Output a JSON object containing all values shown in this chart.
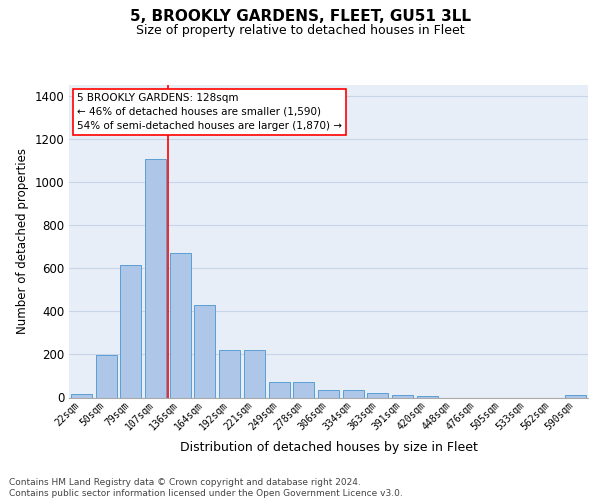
{
  "title": "5, BROOKLY GARDENS, FLEET, GU51 3LL",
  "subtitle": "Size of property relative to detached houses in Fleet",
  "xlabel": "Distribution of detached houses by size in Fleet",
  "ylabel": "Number of detached properties",
  "categories": [
    "22sqm",
    "50sqm",
    "79sqm",
    "107sqm",
    "136sqm",
    "164sqm",
    "192sqm",
    "221sqm",
    "249sqm",
    "278sqm",
    "306sqm",
    "334sqm",
    "363sqm",
    "391sqm",
    "420sqm",
    "448sqm",
    "476sqm",
    "505sqm",
    "533sqm",
    "562sqm",
    "590sqm"
  ],
  "values": [
    18,
    195,
    615,
    1105,
    670,
    430,
    220,
    220,
    73,
    73,
    33,
    33,
    20,
    13,
    8,
    0,
    0,
    0,
    0,
    0,
    13
  ],
  "bar_color": "#aec6e8",
  "bar_edge_color": "#5a9fd4",
  "vline_color": "red",
  "vline_x_index": 3.5,
  "annotation_text": "5 BROOKLY GARDENS: 128sqm\n← 46% of detached houses are smaller (1,590)\n54% of semi-detached houses are larger (1,870) →",
  "annotation_box_facecolor": "white",
  "annotation_box_edgecolor": "red",
  "ylim": [
    0,
    1450
  ],
  "yticks": [
    0,
    200,
    400,
    600,
    800,
    1000,
    1200,
    1400
  ],
  "grid_color": "#c8d4e8",
  "bg_color": "#e8eef8",
  "footer": "Contains HM Land Registry data © Crown copyright and database right 2024.\nContains public sector information licensed under the Open Government Licence v3.0.",
  "title_fontsize": 11,
  "subtitle_fontsize": 9,
  "xlabel_fontsize": 9,
  "ylabel_fontsize": 8.5,
  "annotation_fontsize": 7.5,
  "footer_fontsize": 6.5
}
